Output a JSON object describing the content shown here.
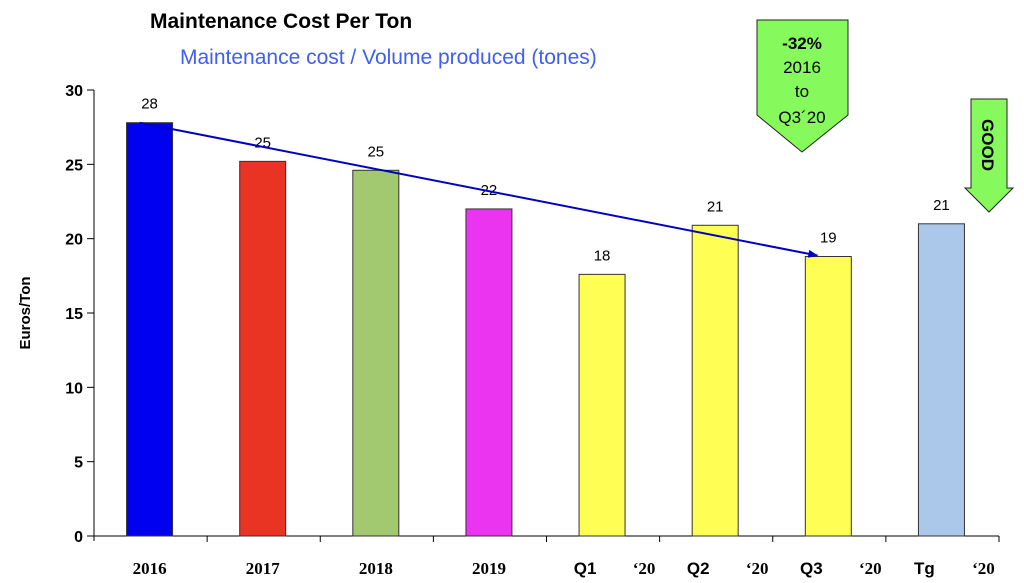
{
  "chart_data": {
    "type": "bar",
    "title": "Maintenance Cost Per Ton",
    "subtitle": "Maintenance cost / Volume produced (tones)",
    "xlabel": "",
    "ylabel": "Euros/Ton",
    "ylim": [
      0,
      30
    ],
    "yticks": [
      0,
      5,
      10,
      15,
      20,
      25,
      30
    ],
    "grid": false,
    "categories": [
      {
        "main": "2016",
        "suffix": ""
      },
      {
        "main": "2017",
        "suffix": ""
      },
      {
        "main": "2018",
        "suffix": ""
      },
      {
        "main": "2019",
        "suffix": ""
      },
      {
        "main": "Q1",
        "suffix": "‘20"
      },
      {
        "main": "Q2",
        "suffix": "‘20"
      },
      {
        "main": "Q3",
        "suffix": "‘20"
      },
      {
        "main": "Tg",
        "suffix": "‘20"
      }
    ],
    "values": [
      27.8,
      25.2,
      24.6,
      22.0,
      17.6,
      20.9,
      18.8,
      21.0
    ],
    "data_labels": [
      "28",
      "25",
      "25",
      "22",
      "18",
      "21",
      "19",
      "21"
    ],
    "colors": [
      "#0000f0",
      "#e93323",
      "#a2c96f",
      "#ea34f0",
      "#fefe54",
      "#fefe54",
      "#fefe54",
      "#abc8eb"
    ],
    "trend_arrow": {
      "from_category": "2016",
      "to_category": "Q3",
      "color": "#0000c0"
    },
    "annotations": [
      {
        "type": "callout-arrow",
        "lines": [
          "-32%",
          "2016",
          "to",
          "Q3´20"
        ],
        "fill": "#86f95c"
      },
      {
        "type": "direction-arrow",
        "text": "GOOD",
        "fill": "#86f95c"
      }
    ]
  }
}
